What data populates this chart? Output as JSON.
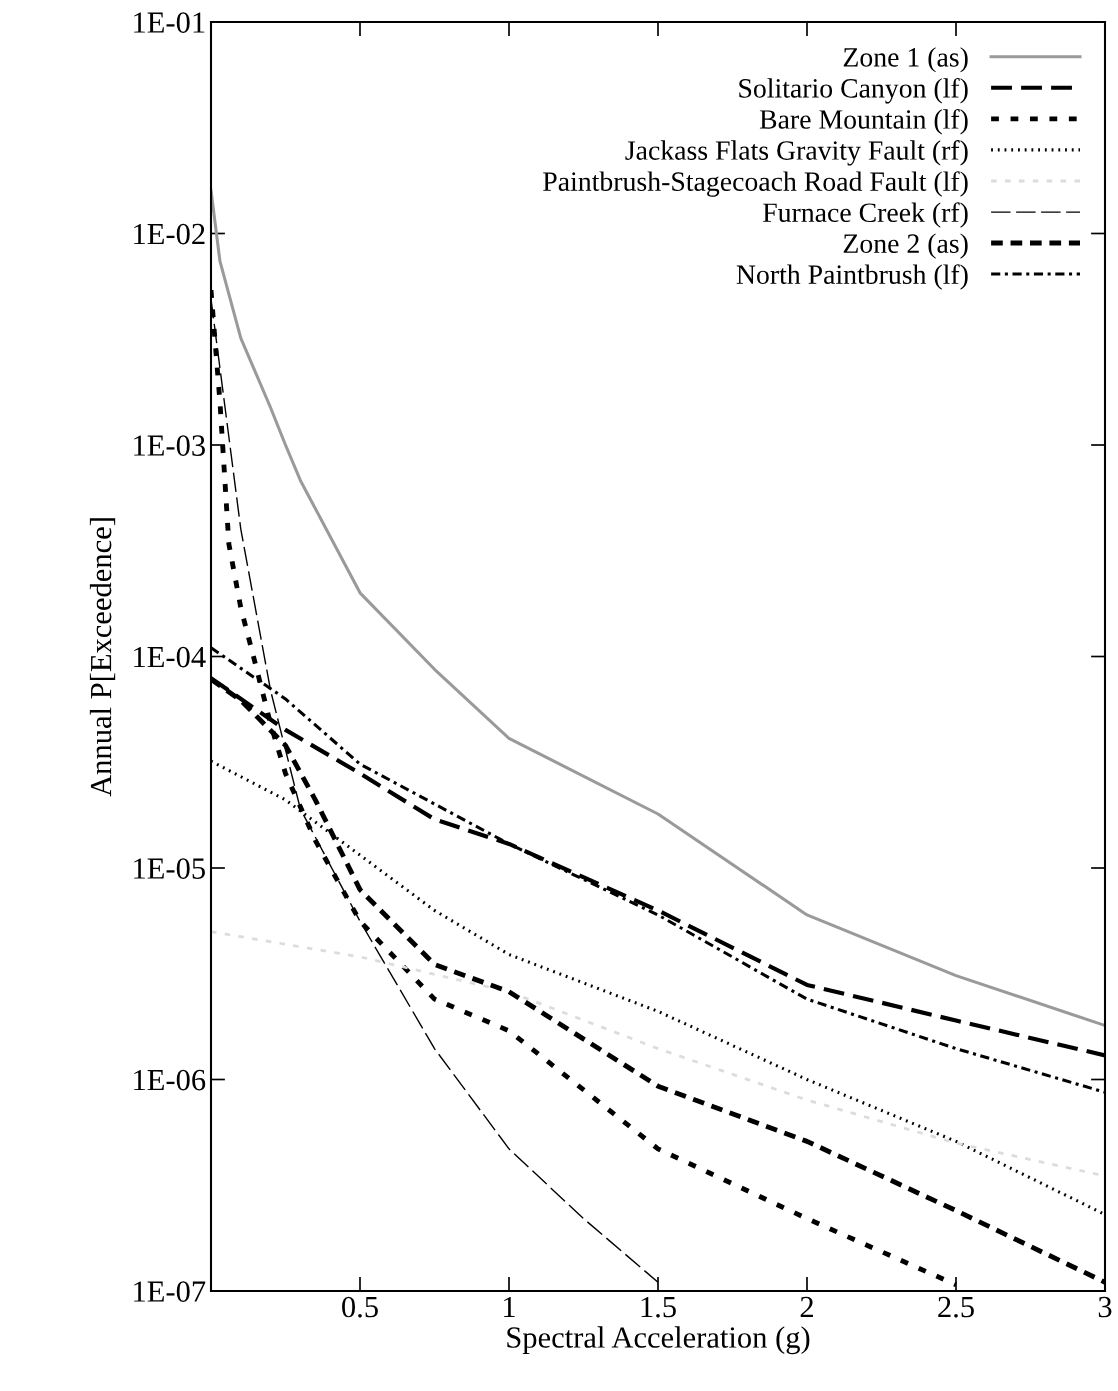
{
  "chart_data": {
    "type": "line",
    "xlabel": "Spectral Acceleration (g)",
    "ylabel": "Annual P[Exceedence]",
    "log": "y",
    "xlim": [
      0,
      3
    ],
    "xticks": [
      0.5,
      1,
      1.5,
      2,
      2.5,
      3
    ],
    "ylim": [
      1e-07,
      0.1
    ],
    "yticks": [
      {
        "value": 1e-07,
        "label": "1E-07"
      },
      {
        "value": 1e-06,
        "label": "1E-06"
      },
      {
        "value": 1e-05,
        "label": "1E-05"
      },
      {
        "value": 0.0001,
        "label": "1E-04"
      },
      {
        "value": 0.001,
        "label": "1E-03"
      },
      {
        "value": 0.01,
        "label": "1E-02"
      },
      {
        "value": 0.1,
        "label": "1E-01"
      }
    ],
    "grid": false,
    "legend": "top right",
    "marker": "none",
    "series": [
      {
        "name": "Zone 1 (as)",
        "color": "#9a9a9a",
        "line_style": "solid",
        "x": [
          0,
          0.03,
          0.1,
          0.2,
          0.25,
          0.3,
          0.5,
          0.75,
          1,
          1.5,
          2,
          2.5,
          3
        ],
        "values": [
          0.016,
          0.0074,
          0.0032,
          0.0015,
          0.001,
          0.00068,
          0.0002,
          8.7e-05,
          4.1e-05,
          1.8e-05,
          6e-06,
          3.1e-06,
          1.8e-06
        ]
      },
      {
        "name": "Solitario Canyon (lf)",
        "color": "#000000",
        "line_style": "dashed",
        "x": [
          0,
          0.25,
          0.5,
          0.75,
          1,
          1.5,
          2,
          2.5,
          3
        ],
        "values": [
          7.9e-05,
          4.5e-05,
          2.8e-05,
          1.7e-05,
          1.3e-05,
          6.3e-06,
          2.8e-06,
          1.9e-06,
          1.3e-06
        ]
      },
      {
        "name": "Bare Mountain (lf)",
        "color": "#000000",
        "line_style": "dashed",
        "x": [
          0,
          0.03,
          0.06,
          0.1,
          0.15,
          0.2,
          0.25,
          0.35,
          0.5,
          0.75,
          1,
          1.5,
          2,
          2.5
        ],
        "values": [
          0.0054,
          0.0016,
          0.00034,
          0.00017,
          9.1e-05,
          4.8e-05,
          2.8e-05,
          1.35e-05,
          5.6e-06,
          2.4e-06,
          1.7e-06,
          4.7e-07,
          2.2e-07,
          1.07e-07
        ]
      },
      {
        "name": "Jackass Flats Gravity Fault (rf)",
        "color": "#000000",
        "line_style": "dotted",
        "x": [
          0,
          0.25,
          0.5,
          0.75,
          1,
          1.5,
          2,
          2.5,
          3
        ],
        "values": [
          3.2e-05,
          2.1e-05,
          1.15e-05,
          6.3e-06,
          3.9e-06,
          2.1e-06,
          1e-06,
          5.1e-07,
          2.3e-07
        ]
      },
      {
        "name": "Paintbrush-Stagecoach Road Fault (lf)",
        "color": "#dcdcdc",
        "line_style": "dashed",
        "x": [
          0,
          0.5,
          1,
          1.5,
          2,
          2.5,
          3
        ],
        "values": [
          5e-06,
          3.8e-06,
          2.6e-06,
          1.4e-06,
          8e-07,
          5e-07,
          3.5e-07
        ]
      },
      {
        "name": "Furnace Creek (rf)",
        "color": "#000000",
        "line_style": "dashed",
        "x": [
          0,
          0.1,
          0.2,
          0.3,
          0.5,
          0.75,
          1,
          1.25,
          1.5
        ],
        "values": [
          0.0049,
          0.0004,
          6.9e-05,
          1.9e-05,
          5.6e-06,
          1.4e-06,
          4.7e-07,
          2.2e-07,
          1.1e-07
        ]
      },
      {
        "name": "Zone 2 (as)",
        "color": "#000000",
        "line_style": "dashed",
        "x": [
          0,
          0.1,
          0.25,
          0.35,
          0.5,
          0.75,
          1,
          1.5,
          2,
          2.5,
          3
        ],
        "values": [
          7.8e-05,
          6.2e-05,
          3.8e-05,
          2.1e-05,
          7.9e-06,
          3.5e-06,
          2.6e-06,
          9.3e-07,
          5.1e-07,
          2.4e-07,
          1.1e-07
        ]
      },
      {
        "name": "North Paintbrush (lf)",
        "color": "#000000",
        "line_style": "dashed",
        "x": [
          0,
          0.25,
          0.5,
          1,
          1.5,
          2,
          2.5,
          3
        ],
        "values": [
          0.00011,
          6.3e-05,
          3.1e-05,
          1.3e-05,
          6e-06,
          2.4e-06,
          1.4e-06,
          8.7e-07
        ]
      }
    ]
  }
}
